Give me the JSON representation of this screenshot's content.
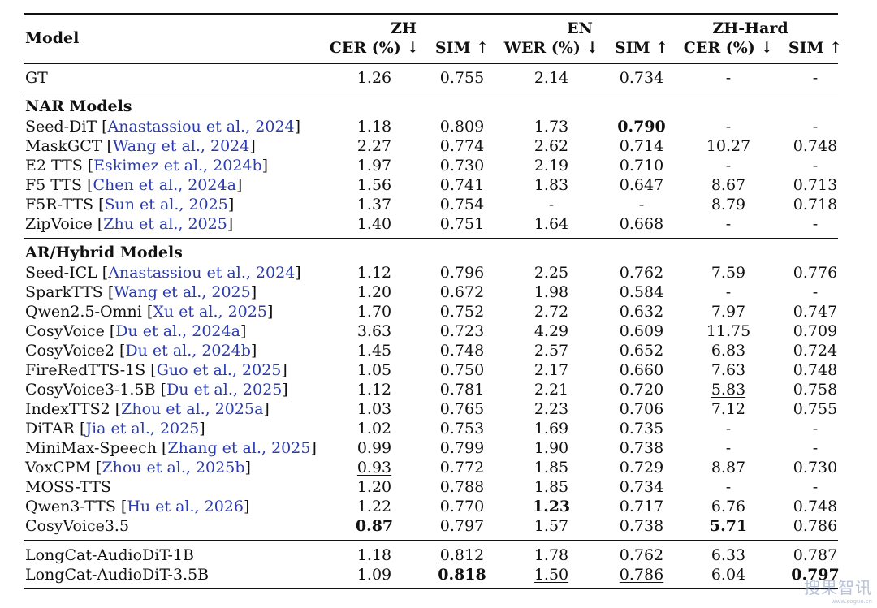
{
  "header": {
    "model": "Model",
    "groups": [
      "ZH",
      "EN",
      "ZH-Hard"
    ],
    "metrics": [
      "CER (%) ↓",
      "SIM ↑",
      "WER (%) ↓",
      "SIM ↑",
      "CER (%) ↓",
      "SIM ↑"
    ]
  },
  "gt": {
    "model": "GT",
    "values": [
      "1.26",
      "0.755",
      "2.14",
      "0.734",
      "-",
      "-"
    ]
  },
  "sections": [
    {
      "title": "NAR Models",
      "rows": [
        {
          "model": "Seed-DiT",
          "ref": "Anastassiou et al., 2024",
          "values": [
            "1.18",
            "0.809",
            "1.73",
            "0.790",
            "-",
            "-"
          ],
          "bold": [
            3
          ],
          "underline": []
        },
        {
          "model": "MaskGCT",
          "ref": "Wang et al., 2024",
          "values": [
            "2.27",
            "0.774",
            "2.62",
            "0.714",
            "10.27",
            "0.748"
          ],
          "bold": [],
          "underline": []
        },
        {
          "model": "E2 TTS",
          "ref": "Eskimez et al., 2024b",
          "values": [
            "1.97",
            "0.730",
            "2.19",
            "0.710",
            "-",
            "-"
          ],
          "bold": [],
          "underline": []
        },
        {
          "model": "F5 TTS",
          "ref": "Chen et al., 2024a",
          "values": [
            "1.56",
            "0.741",
            "1.83",
            "0.647",
            "8.67",
            "0.713"
          ],
          "bold": [],
          "underline": []
        },
        {
          "model": "F5R-TTS",
          "ref": "Sun et al., 2025",
          "values": [
            "1.37",
            "0.754",
            "-",
            "-",
            "8.79",
            "0.718"
          ],
          "bold": [],
          "underline": []
        },
        {
          "model": "ZipVoice",
          "ref": "Zhu et al., 2025",
          "values": [
            "1.40",
            "0.751",
            "1.64",
            "0.668",
            "-",
            "-"
          ],
          "bold": [],
          "underline": []
        }
      ]
    },
    {
      "title": "AR/Hybrid Models",
      "rows": [
        {
          "model": "Seed-ICL",
          "ref": "Anastassiou et al., 2024",
          "values": [
            "1.12",
            "0.796",
            "2.25",
            "0.762",
            "7.59",
            "0.776"
          ],
          "bold": [],
          "underline": []
        },
        {
          "model": "SparkTTS",
          "ref": "Wang et al., 2025",
          "values": [
            "1.20",
            "0.672",
            "1.98",
            "0.584",
            "-",
            "-"
          ],
          "bold": [],
          "underline": []
        },
        {
          "model": "Qwen2.5-Omni",
          "ref": "Xu et al., 2025",
          "values": [
            "1.70",
            "0.752",
            "2.72",
            "0.632",
            "7.97",
            "0.747"
          ],
          "bold": [],
          "underline": []
        },
        {
          "model": "CosyVoice",
          "ref": "Du et al., 2024a",
          "values": [
            "3.63",
            "0.723",
            "4.29",
            "0.609",
            "11.75",
            "0.709"
          ],
          "bold": [],
          "underline": []
        },
        {
          "model": "CosyVoice2",
          "ref": "Du et al., 2024b",
          "values": [
            "1.45",
            "0.748",
            "2.57",
            "0.652",
            "6.83",
            "0.724"
          ],
          "bold": [],
          "underline": []
        },
        {
          "model": "FireRedTTS-1S",
          "ref": "Guo et al., 2025",
          "values": [
            "1.05",
            "0.750",
            "2.17",
            "0.660",
            "7.63",
            "0.748"
          ],
          "bold": [],
          "underline": []
        },
        {
          "model": "CosyVoice3-1.5B",
          "ref": "Du et al., 2025",
          "values": [
            "1.12",
            "0.781",
            "2.21",
            "0.720",
            "5.83",
            "0.758"
          ],
          "bold": [],
          "underline": [
            4
          ]
        },
        {
          "model": "IndexTTS2",
          "ref": "Zhou et al., 2025a",
          "values": [
            "1.03",
            "0.765",
            "2.23",
            "0.706",
            "7.12",
            "0.755"
          ],
          "bold": [],
          "underline": []
        },
        {
          "model": "DiTAR",
          "ref": "Jia et al., 2025",
          "values": [
            "1.02",
            "0.753",
            "1.69",
            "0.735",
            "-",
            "-"
          ],
          "bold": [],
          "underline": []
        },
        {
          "model": "MiniMax-Speech",
          "ref": "Zhang et al., 2025",
          "values": [
            "0.99",
            "0.799",
            "1.90",
            "0.738",
            "-",
            "-"
          ],
          "bold": [],
          "underline": []
        },
        {
          "model": "VoxCPM",
          "ref": "Zhou et al., 2025b",
          "values": [
            "0.93",
            "0.772",
            "1.85",
            "0.729",
            "8.87",
            "0.730"
          ],
          "bold": [],
          "underline": [
            0
          ]
        },
        {
          "model": "MOSS-TTS",
          "ref": "",
          "values": [
            "1.20",
            "0.788",
            "1.85",
            "0.734",
            "-",
            "-"
          ],
          "bold": [],
          "underline": []
        },
        {
          "model": "Qwen3-TTS",
          "ref": "Hu et al., 2026",
          "values": [
            "1.22",
            "0.770",
            "1.23",
            "0.717",
            "6.76",
            "0.748"
          ],
          "bold": [
            2
          ],
          "underline": []
        },
        {
          "model": "CosyVoice3.5",
          "ref": "",
          "values": [
            "0.87",
            "0.797",
            "1.57",
            "0.738",
            "5.71",
            "0.786"
          ],
          "bold": [
            0,
            4
          ],
          "underline": []
        }
      ]
    },
    {
      "title": "",
      "rows": [
        {
          "model": "LongCat-AudioDiT-1B",
          "ref": "",
          "values": [
            "1.18",
            "0.812",
            "1.78",
            "0.762",
            "6.33",
            "0.787"
          ],
          "bold": [],
          "underline": [
            1,
            5
          ]
        },
        {
          "model": "LongCat-AudioDiT-3.5B",
          "ref": "",
          "values": [
            "1.09",
            "0.818",
            "1.50",
            "0.786",
            "6.04",
            "0.797"
          ],
          "bold": [
            1,
            5
          ],
          "underline": [
            2,
            3
          ]
        }
      ]
    }
  ],
  "watermark": {
    "main": "搜果智讯",
    "sub": "www.soguo.cn"
  }
}
